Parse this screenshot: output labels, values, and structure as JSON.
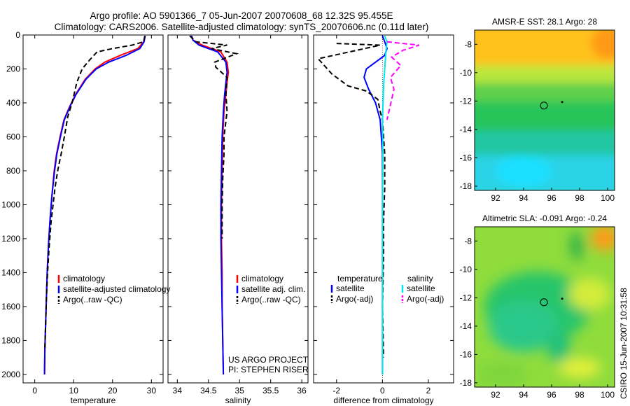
{
  "header": {
    "line1": "Argo profile: AO 5901366_7 05-Jun-2007 20070608_68 12.32S 95.455E",
    "line2": "Climatology: CARS2006. Satellite-adjusted climatology: synTS_20070606.nc (0.11d later)"
  },
  "footer_vertical": "CSIRO 15-Jun-2007 10:31:58",
  "colors": {
    "climatology": "#ff0000",
    "satellite": "#0000ff",
    "argo": "#000000",
    "salinity_satellite": "#00e5ee",
    "salinity_argo": "#ff00ff"
  },
  "chart_data": [
    {
      "type": "line",
      "panel": "temperature",
      "xlabel": "temperature",
      "ylabel": "",
      "xlim": [
        -3,
        33
      ],
      "ylim": [
        2050,
        0
      ],
      "xticks": [
        0,
        10,
        20,
        30
      ],
      "yticks": [
        0,
        200,
        400,
        600,
        800,
        1000,
        1200,
        1400,
        1600,
        1800,
        2000
      ],
      "legend": {
        "position": "lower-right",
        "entries": [
          "climatology",
          "satellite-adjusted climatology",
          "Argo(..raw -QC)"
        ]
      },
      "series": [
        {
          "name": "climatology",
          "color": "#ff0000",
          "style": "solid",
          "x": [
            28.4,
            28.0,
            26.5,
            22.0,
            18.0,
            15.5,
            13.0,
            10.5,
            9.0,
            7.5,
            6.5,
            5.6,
            5.0,
            4.4,
            3.9,
            3.5,
            3.2,
            3.0,
            2.8,
            2.6,
            2.5
          ],
          "y": [
            5,
            40,
            80,
            120,
            160,
            200,
            260,
            350,
            420,
            500,
            600,
            700,
            800,
            950,
            1100,
            1250,
            1400,
            1550,
            1700,
            1850,
            2000
          ]
        },
        {
          "name": "satellite-adjusted climatology",
          "color": "#0000ff",
          "style": "solid",
          "x": [
            28.4,
            28.1,
            27.0,
            23.5,
            19.0,
            15.8,
            13.2,
            10.6,
            9.1,
            7.6,
            6.6,
            5.7,
            5.1,
            4.4,
            3.9,
            3.5,
            3.2,
            3.0,
            2.8,
            2.6,
            2.5
          ],
          "y": [
            5,
            40,
            80,
            120,
            160,
            200,
            260,
            350,
            420,
            500,
            600,
            700,
            800,
            950,
            1100,
            1250,
            1400,
            1550,
            1700,
            1850,
            2000
          ]
        },
        {
          "name": "Argo(..raw -QC)",
          "color": "#000000",
          "style": "dashed",
          "x": [
            28.3,
            28.0,
            25.0,
            20.0,
            16.0,
            14.0,
            12.2,
            10.8,
            9.6,
            8.5,
            7.6,
            6.8,
            5.9,
            5.2,
            4.7,
            4.2,
            3.7,
            3.3,
            3.0,
            2.8,
            2.6
          ],
          "y": [
            5,
            40,
            60,
            80,
            100,
            150,
            200,
            280,
            400,
            480,
            600,
            700,
            800,
            900,
            1000,
            1100,
            1250,
            1400,
            1550,
            1700,
            1850
          ]
        }
      ]
    },
    {
      "type": "line",
      "panel": "salinity",
      "xlabel": "salinity",
      "xlim": [
        33.85,
        36.1
      ],
      "ylim": [
        2050,
        0
      ],
      "xticks": [
        34,
        34.5,
        35,
        35.5,
        36
      ],
      "legend": {
        "position": "lower-right",
        "entries": [
          "climatology",
          "satellite adj. clim.",
          "Argo(..raw -QC)"
        ]
      },
      "annotation": [
        "US ARGO PROJECT",
        "PI: STEPHEN RISER"
      ],
      "series": [
        {
          "name": "climatology",
          "color": "#ff0000",
          "style": "solid",
          "x": [
            34.22,
            34.25,
            34.4,
            34.7,
            34.8,
            34.82,
            34.8,
            34.78,
            34.75,
            34.73,
            34.72,
            34.71,
            34.71,
            34.72,
            34.72,
            34.73,
            34.74
          ],
          "y": [
            5,
            30,
            60,
            100,
            160,
            220,
            280,
            350,
            450,
            600,
            800,
            1000,
            1200,
            1400,
            1600,
            1800,
            2000
          ]
        },
        {
          "name": "satellite adj. clim.",
          "color": "#0000ff",
          "style": "solid",
          "x": [
            34.23,
            34.25,
            34.35,
            34.65,
            34.78,
            34.8,
            34.78,
            34.76,
            34.74,
            34.72,
            34.71,
            34.7,
            34.7,
            34.71,
            34.72,
            34.73,
            34.74
          ],
          "y": [
            5,
            30,
            60,
            100,
            160,
            220,
            280,
            350,
            450,
            600,
            800,
            1000,
            1200,
            1400,
            1600,
            1800,
            2000
          ]
        },
        {
          "name": "Argo(..raw -QC)",
          "color": "#000000",
          "style": "dashed",
          "x": [
            34.2,
            34.3,
            34.8,
            34.55,
            34.95,
            34.6,
            34.62,
            34.8,
            34.78,
            34.8,
            34.75,
            34.75,
            34.73,
            34.72,
            34.72
          ],
          "y": [
            5,
            40,
            60,
            80,
            110,
            160,
            190,
            250,
            350,
            450,
            600,
            700,
            850,
            1000,
            1200
          ]
        }
      ]
    },
    {
      "type": "line",
      "panel": "difference",
      "xlabel": "difference from climatology",
      "xlim": [
        -3,
        3.1
      ],
      "ylim": [
        2050,
        0
      ],
      "xticks": [
        -2,
        0,
        2
      ],
      "legend": {
        "position": "lower-left",
        "groups": [
          {
            "title": "temperature",
            "entries": [
              "satellite",
              "Argo(-adj)"
            ]
          },
          {
            "title": "salinity",
            "entries": [
              "satellite",
              "Argo(-adj)"
            ]
          }
        ]
      },
      "series": [
        {
          "name": "temperature satellite",
          "color": "#0000ff",
          "style": "solid",
          "x": [
            0.0,
            0.1,
            0.2,
            0.1,
            -0.3,
            -0.7,
            -0.8,
            -0.6,
            -0.3,
            -0.1,
            0.0,
            0.0,
            0.0,
            0.0,
            0.0,
            0.0
          ],
          "y": [
            5,
            40,
            80,
            120,
            160,
            200,
            250,
            320,
            400,
            500,
            700,
            900,
            1200,
            1500,
            1800,
            2000
          ]
        },
        {
          "name": "temperature Argo(-adj)",
          "color": "#000000",
          "style": "dashed",
          "x": [
            -2.0,
            -0.1,
            -2.8,
            -2.2,
            -1.5,
            -0.7,
            -0.2,
            -0.1,
            0.0,
            0.05,
            0.1,
            0.1,
            0.05,
            0.05,
            0.0,
            0.05
          ],
          "y": [
            50,
            60,
            140,
            230,
            300,
            330,
            380,
            450,
            500,
            600,
            700,
            900,
            1100,
            1300,
            1600,
            1900
          ]
        },
        {
          "name": "salinity satellite",
          "color": "#00e5ee",
          "style": "solid",
          "x": [
            0.1,
            0.2,
            0.15,
            0.1,
            0.05,
            0.0,
            0.02,
            0.0,
            0.0,
            0.0,
            0.0
          ],
          "y": [
            5,
            40,
            100,
            200,
            300,
            500,
            700,
            1000,
            1400,
            1800,
            2000
          ]
        },
        {
          "name": "salinity Argo(-adj)",
          "color": "#ff00ff",
          "style": "dashed",
          "x": [
            0.2,
            1.6,
            0.9,
            0.4,
            0.8,
            0.35,
            0.5,
            0.2
          ],
          "y": [
            40,
            60,
            90,
            130,
            180,
            250,
            320,
            500
          ]
        }
      ]
    },
    {
      "type": "heatmap",
      "panel": "map-sst",
      "title": "AMSR-E SST: 28.1  Argo: 28",
      "xlim": [
        90.5,
        100.5
      ],
      "ylim": [
        -18.3,
        -7.0
      ],
      "xticks": [
        92,
        94,
        96,
        98,
        100
      ],
      "yticks": [
        -8,
        -10,
        -12,
        -14,
        -16,
        -18
      ],
      "marker": {
        "lon": 95.455,
        "lat": -12.32
      }
    },
    {
      "type": "heatmap",
      "panel": "map-sla",
      "title": "Altimetric SLA: -0.091  Argo: -0.24",
      "xlim": [
        90.5,
        100.5
      ],
      "ylim": [
        -18.3,
        -7.0
      ],
      "xticks": [
        92,
        94,
        96,
        98,
        100
      ],
      "yticks": [
        -8,
        -10,
        -12,
        -14,
        -16,
        -18
      ],
      "marker": {
        "lon": 95.455,
        "lat": -12.32
      }
    }
  ]
}
